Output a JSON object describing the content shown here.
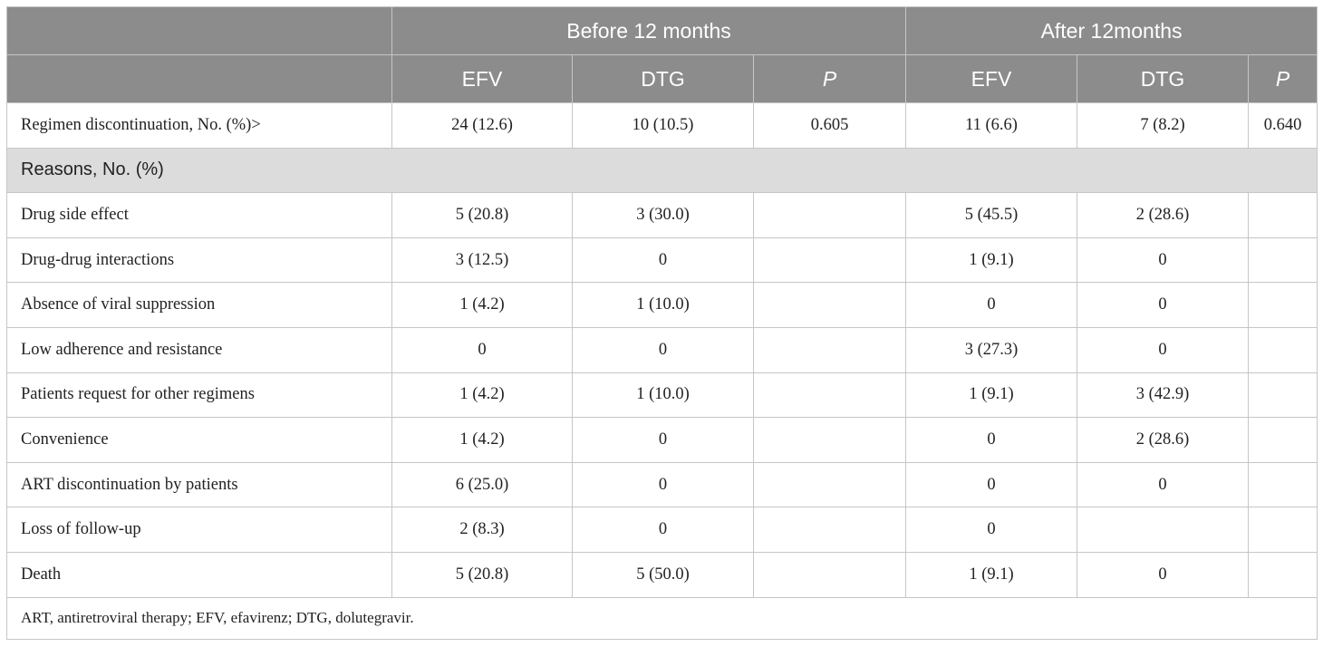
{
  "table": {
    "group_headers": [
      "Before 12 months",
      "After 12months"
    ],
    "sub_headers": [
      "EFV",
      "DTG",
      "P",
      "EFV",
      "DTG",
      "P"
    ],
    "summary_row": {
      "label": "Regimen discontinuation, No. (%)>",
      "values": [
        "24 (12.6)",
        "10 (10.5)",
        "0.605",
        "11 (6.6)",
        "7 (8.2)",
        "0.640"
      ]
    },
    "section_label": "Reasons, No. (%)",
    "rows": [
      {
        "label": "Drug side effect",
        "values": [
          "5 (20.8)",
          "3 (30.0)",
          "",
          "5 (45.5)",
          "2 (28.6)",
          ""
        ]
      },
      {
        "label": "Drug-drug interactions",
        "values": [
          "3 (12.5)",
          "0",
          "",
          "1 (9.1)",
          "0",
          ""
        ]
      },
      {
        "label": "Absence of viral suppression",
        "values": [
          "1 (4.2)",
          "1 (10.0)",
          "",
          "0",
          "0",
          ""
        ]
      },
      {
        "label": "Low adherence and resistance",
        "values": [
          "0",
          "0",
          "",
          "3 (27.3)",
          "0",
          ""
        ]
      },
      {
        "label": "Patients request for other regimens",
        "values": [
          "1 (4.2)",
          "1 (10.0)",
          "",
          "1 (9.1)",
          "3 (42.9)",
          ""
        ]
      },
      {
        "label": "Convenience",
        "values": [
          "1 (4.2)",
          "0",
          "",
          "0",
          "2 (28.6)",
          ""
        ]
      },
      {
        "label": "ART discontinuation by patients",
        "values": [
          "6 (25.0)",
          "0",
          "",
          "0",
          "0",
          ""
        ]
      },
      {
        "label": "Loss of follow-up",
        "values": [
          "2 (8.3)",
          "0",
          "",
          "0",
          "",
          ""
        ]
      },
      {
        "label": "Death",
        "values": [
          "5 (20.8)",
          "5 (50.0)",
          "",
          "1 (9.1)",
          "0",
          ""
        ]
      }
    ],
    "footnote": "ART, antiretroviral therapy; EFV, efavirenz; DTG, dolutegravir."
  },
  "colors": {
    "header_bg": "#8c8c8c",
    "section_bg": "#dcdcdc",
    "border": "#c6c6c6"
  }
}
